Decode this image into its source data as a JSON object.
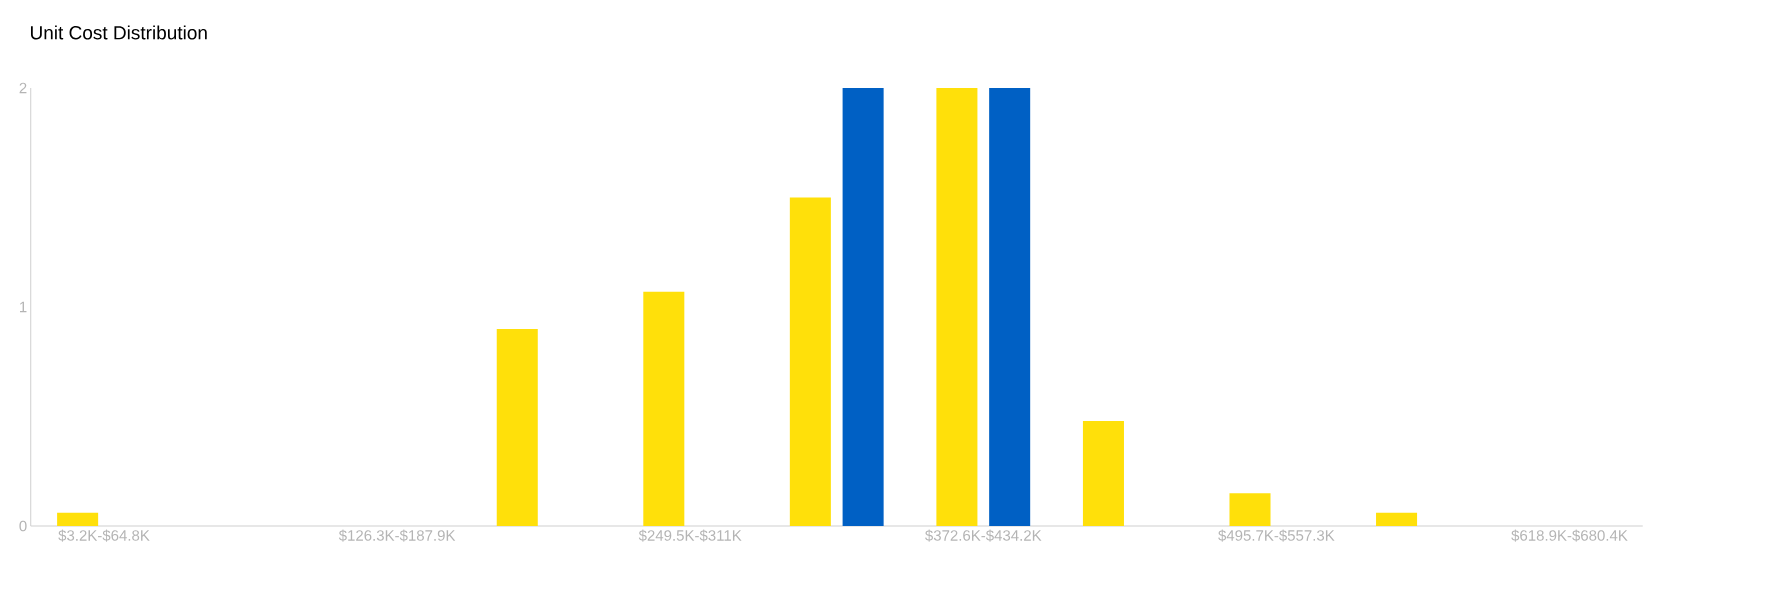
{
  "chart_data": {
    "type": "bar",
    "title": "Unit Cost Distribution",
    "categories": [
      "$3.2K-$64.8K",
      null,
      "$126.3K-$187.9K",
      null,
      "$249.5K-$311K",
      null,
      "$372.6K-$434.2K",
      null,
      "$495.7K-$557.3K",
      null,
      "$618.9K-$680.4K"
    ],
    "series": [
      {
        "color": "#ffe00a",
        "values": [
          0.06,
          null,
          null,
          0.9,
          1.07,
          1.5,
          2,
          0.48,
          0.15,
          0.06,
          null
        ]
      },
      {
        "color": "#0060c4",
        "values": [
          null,
          null,
          null,
          null,
          null,
          2,
          2,
          null,
          null,
          null,
          null
        ]
      }
    ],
    "ylim": [
      0,
      2
    ],
    "yticks": [
      0,
      1,
      2
    ]
  }
}
